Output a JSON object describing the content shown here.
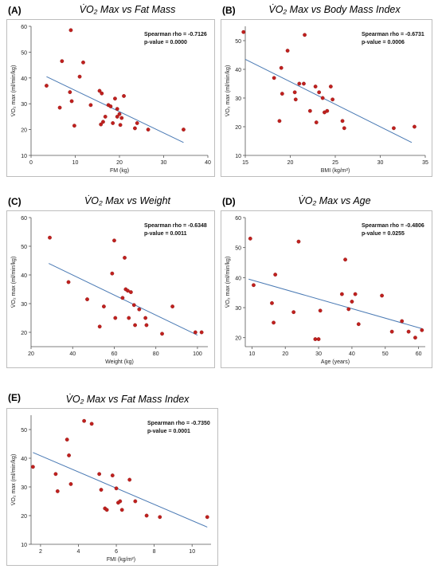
{
  "chart_data": [
    {
      "type": "scatter",
      "panel": "(A)",
      "title": "V̇O₂ Max vs Fat Mass",
      "xlabel": "FM (kg)",
      "ylabel": "V̇O₂ max (ml/min/kg)",
      "xlim": [
        0,
        40
      ],
      "ylim": [
        10,
        60
      ],
      "xticks": [
        0,
        10,
        20,
        30,
        40
      ],
      "yticks": [
        10,
        20,
        30,
        40,
        50,
        60
      ],
      "stats": [
        "Spearman rho = -0.7126",
        "p-value = 0.0000"
      ],
      "trend": [
        [
          3.5,
          40.5
        ],
        [
          34.5,
          15.0
        ]
      ],
      "points": [
        [
          3.5,
          37
        ],
        [
          6.5,
          28.5
        ],
        [
          7,
          46.5
        ],
        [
          8.8,
          34.5
        ],
        [
          9,
          58.5
        ],
        [
          9.2,
          31
        ],
        [
          9.8,
          21.5
        ],
        [
          11,
          40.5
        ],
        [
          11.8,
          46
        ],
        [
          13.5,
          29.5
        ],
        [
          15.5,
          35
        ],
        [
          15.8,
          22
        ],
        [
          16,
          34
        ],
        [
          16.3,
          23
        ],
        [
          16.8,
          25
        ],
        [
          17.5,
          29.5
        ],
        [
          18,
          29
        ],
        [
          18.5,
          22.5
        ],
        [
          19,
          32
        ],
        [
          19.5,
          28
        ],
        [
          19.5,
          25
        ],
        [
          20,
          26
        ],
        [
          20.2,
          21.8
        ],
        [
          20.5,
          24.5
        ],
        [
          21,
          33
        ],
        [
          23.5,
          20.5
        ],
        [
          24,
          22.5
        ],
        [
          26.5,
          20
        ],
        [
          34.5,
          20
        ]
      ]
    },
    {
      "type": "scatter",
      "panel": "(B)",
      "title": "V̇O₂ Max vs Body Mass Index",
      "xlabel": "BMI (kg/m²)",
      "ylabel": "V̇O₂ max (ml/min/kg)",
      "xlim": [
        15,
        35
      ],
      "ylim": [
        10,
        55
      ],
      "xticks": [
        15,
        20,
        25,
        30,
        35
      ],
      "yticks": [
        10,
        20,
        30,
        40,
        50
      ],
      "stats": [
        "Spearman rho = -0.6731",
        "p-value = 0.0006"
      ],
      "trend": [
        [
          15,
          43.5
        ],
        [
          33.5,
          14.5
        ]
      ],
      "points": [
        [
          14.8,
          53
        ],
        [
          18.2,
          37
        ],
        [
          18.8,
          22
        ],
        [
          19,
          40.5
        ],
        [
          19.1,
          31.5
        ],
        [
          19.7,
          46.5
        ],
        [
          20.5,
          32
        ],
        [
          20.6,
          29.5
        ],
        [
          21,
          35
        ],
        [
          21.5,
          35
        ],
        [
          21.6,
          52
        ],
        [
          22.2,
          25.5
        ],
        [
          22.8,
          34
        ],
        [
          22.9,
          21.5
        ],
        [
          23.2,
          32
        ],
        [
          23.6,
          30
        ],
        [
          23.8,
          25
        ],
        [
          24.1,
          25.5
        ],
        [
          24.5,
          34
        ],
        [
          24.7,
          29.5
        ],
        [
          25.8,
          22
        ],
        [
          26,
          19.5
        ],
        [
          31.5,
          19.5
        ],
        [
          33.8,
          20
        ]
      ]
    },
    {
      "type": "scatter",
      "panel": "(C)",
      "title": "V̇O₂ Max vs Weight",
      "xlabel": "Weight (kg)",
      "ylabel": "V̇O₂ max (ml/min/kg)",
      "xlim": [
        20,
        105
      ],
      "ylim": [
        15,
        60
      ],
      "xticks": [
        20,
        40,
        60,
        80,
        100
      ],
      "yticks": [
        20,
        30,
        40,
        50,
        60
      ],
      "stats": [
        "Spearman rho = -0.6348",
        "p-value = 0.0011"
      ],
      "trend": [
        [
          28.5,
          44.0
        ],
        [
          100,
          19.0
        ]
      ],
      "points": [
        [
          29,
          53
        ],
        [
          38,
          37.5
        ],
        [
          47,
          31.5
        ],
        [
          53,
          22
        ],
        [
          55,
          29
        ],
        [
          59,
          40.5
        ],
        [
          60,
          52
        ],
        [
          60.5,
          25
        ],
        [
          64,
          32
        ],
        [
          65,
          46
        ],
        [
          65.5,
          35
        ],
        [
          66.5,
          34.5
        ],
        [
          67,
          25
        ],
        [
          68,
          34
        ],
        [
          69.5,
          29.5
        ],
        [
          70,
          22.5
        ],
        [
          72,
          28
        ],
        [
          75,
          25
        ],
        [
          75.5,
          22.5
        ],
        [
          83,
          19.5
        ],
        [
          88,
          29
        ],
        [
          99,
          20
        ],
        [
          102,
          20
        ]
      ]
    },
    {
      "type": "scatter",
      "panel": "(D)",
      "title": "V̇O₂ Max vs Age",
      "xlabel": "Age (years)",
      "ylabel": "V̇O₂ max (ml/min/kg)",
      "xlim": [
        8,
        62
      ],
      "ylim": [
        17,
        60
      ],
      "xticks": [
        10,
        20,
        30,
        40,
        50,
        60
      ],
      "yticks": [
        20,
        30,
        40,
        50,
        60
      ],
      "stats": [
        "Spearman rho = -0.4806",
        "p-value = 0.0255"
      ],
      "trend": [
        [
          9,
          39.5
        ],
        [
          61,
          23.0
        ]
      ],
      "points": [
        [
          9.5,
          53
        ],
        [
          10.5,
          37.5
        ],
        [
          16,
          31.5
        ],
        [
          16.5,
          25
        ],
        [
          17,
          41
        ],
        [
          22.5,
          28.5
        ],
        [
          24,
          52
        ],
        [
          29,
          19.5
        ],
        [
          30,
          19.5
        ],
        [
          30.5,
          29
        ],
        [
          37,
          34.5
        ],
        [
          38,
          46
        ],
        [
          39,
          29.5
        ],
        [
          40,
          32
        ],
        [
          41,
          34.5
        ],
        [
          42,
          24.5
        ],
        [
          49,
          34
        ],
        [
          52,
          22
        ],
        [
          55,
          25.5
        ],
        [
          57,
          22
        ],
        [
          59,
          20
        ],
        [
          61,
          22.5
        ]
      ]
    },
    {
      "type": "scatter",
      "panel": "(E)",
      "title": "V̇O₂ Max vs Fat Mass Index",
      "xlabel": "FMI (kg/m²)",
      "ylabel": "V̇O₂ max (ml/min/kg)",
      "xlim": [
        1.5,
        11
      ],
      "ylim": [
        10,
        55
      ],
      "xticks": [
        2,
        4,
        6,
        8,
        10
      ],
      "yticks": [
        10,
        20,
        30,
        40,
        50
      ],
      "stats": [
        "Spearman rho = -0.7350",
        "p-value = 0.0001"
      ],
      "trend": [
        [
          1.6,
          42.0
        ],
        [
          10.8,
          16.0
        ]
      ],
      "points": [
        [
          1.6,
          37
        ],
        [
          2.8,
          34.5
        ],
        [
          2.9,
          28.5
        ],
        [
          3.4,
          46.5
        ],
        [
          3.5,
          41
        ],
        [
          3.6,
          31
        ],
        [
          4.3,
          53
        ],
        [
          4.7,
          52
        ],
        [
          5.1,
          34.5
        ],
        [
          5.2,
          29
        ],
        [
          5.4,
          22.5
        ],
        [
          5.5,
          22
        ],
        [
          5.8,
          34
        ],
        [
          6,
          29.5
        ],
        [
          6.1,
          24.5
        ],
        [
          6.2,
          25
        ],
        [
          6.3,
          22
        ],
        [
          6.7,
          32.5
        ],
        [
          7,
          25
        ],
        [
          7.6,
          20
        ],
        [
          8.3,
          19.5
        ],
        [
          10.8,
          19.5
        ]
      ]
    }
  ]
}
